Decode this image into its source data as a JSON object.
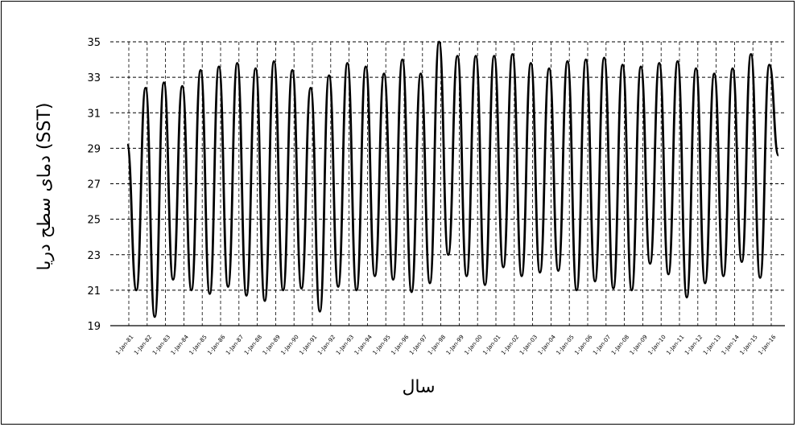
{
  "chart_data": {
    "type": "line",
    "title": "",
    "xlabel": "سال",
    "ylabel": "دمای سطح دریا (SST)",
    "ylim": [
      19,
      35
    ],
    "yticks": [
      19,
      21,
      23,
      25,
      27,
      29,
      31,
      33,
      35
    ],
    "grid": true,
    "legend": "none",
    "line_color": "#000000",
    "x_tick_labels": [
      "1-Jan-81",
      "1-Jan-82",
      "1-Jan-83",
      "1-Jan-84",
      "1-Jan-85",
      "1-Jan-86",
      "1-Jan-87",
      "1-Jan-88",
      "1-Jan-89",
      "1-Jan-90",
      "1-Jan-91",
      "1-Jan-92",
      "1-Jan-93",
      "1-Jan-94",
      "1-Jan-95",
      "1-Jan-96",
      "1-Jan-97",
      "1-Jan-98",
      "1-Jan-99",
      "1-Jan-00",
      "1-Jan-01",
      "1-Jan-02",
      "1-Jan-03",
      "1-Jan-04",
      "1-Jan-05",
      "1-Jan-06",
      "1-Jan-07",
      "1-Jan-08",
      "1-Jan-09",
      "1-Jan-10",
      "1-Jan-11",
      "1-Jan-12",
      "1-Jan-13",
      "1-Jan-14",
      "1-Jan-15",
      "1-Jan-16"
    ],
    "series": [
      {
        "values": [
          29.2,
          21.0,
          32.4,
          19.5,
          32.7,
          21.6,
          32.5,
          21.0,
          33.4,
          20.8,
          33.6,
          21.2,
          33.8,
          20.7,
          33.5,
          20.4,
          33.9,
          21.0,
          33.4,
          21.1,
          32.4,
          19.8,
          33.1,
          21.2,
          33.8,
          21.0,
          33.6,
          21.8,
          33.2,
          21.6,
          34.0,
          20.9,
          33.2,
          21.4,
          35.0,
          23.0,
          34.2,
          21.8,
          34.2,
          21.3,
          34.2,
          22.3,
          34.3,
          21.8,
          33.8,
          22.0,
          33.5,
          22.1,
          33.9,
          21.0,
          34.0,
          21.5,
          34.1,
          21.1,
          33.7,
          21.0,
          33.6,
          22.5,
          33.8,
          21.9,
          33.9,
          20.6,
          33.5,
          21.4,
          33.2,
          21.8,
          33.5,
          22.6,
          34.3,
          21.7,
          33.7,
          28.6
        ]
      }
    ]
  }
}
